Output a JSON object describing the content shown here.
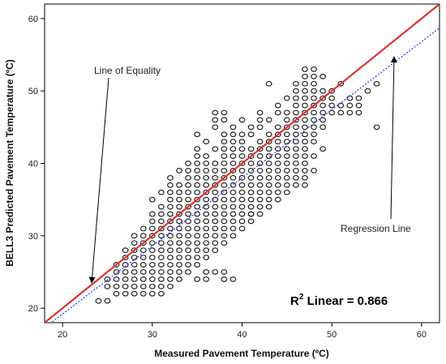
{
  "chart_data": {
    "type": "scatter",
    "xlabel": "Measured Pavement Temperature (ºC)",
    "ylabel": "BELL3 Predicted Pavement Temperature (ºC)",
    "xlim": [
      18,
      62
    ],
    "ylim": [
      18,
      62
    ],
    "xticks": [
      "20",
      "30",
      "40",
      "50",
      "60"
    ],
    "yticks": [
      "20",
      "30",
      "40",
      "50",
      "60"
    ],
    "grid": false,
    "annotations": {
      "equality_label": "Line of Equality",
      "regression_label": "Regression Line",
      "r2_prefix": "R",
      "r2_sup": "2",
      "r2_text": " Linear = 0.866"
    },
    "lines": [
      {
        "name": "Line of Equality",
        "slope": 1,
        "intercept": 0,
        "color": "#e03030",
        "style": "solid"
      },
      {
        "name": "Regression Line",
        "slope": 0.94,
        "intercept": 0.4,
        "color": "#3a3af0",
        "style": "dotted"
      }
    ],
    "marker_color": "#222222",
    "point_rows": [
      {
        "y": 21,
        "x": [
          24,
          25
        ]
      },
      {
        "y": 22,
        "x": [
          26,
          27,
          28,
          29,
          30,
          31
        ]
      },
      {
        "y": 23,
        "x": [
          25,
          26,
          27,
          28,
          29,
          30,
          31,
          32
        ]
      },
      {
        "y": 24,
        "x": [
          25,
          26,
          27,
          28,
          29,
          30,
          31,
          32,
          33,
          35,
          36,
          38
        ]
      },
      {
        "y": 25,
        "x": [
          26,
          27,
          28,
          29,
          30,
          31,
          32,
          33,
          34,
          37,
          38
        ]
      },
      {
        "y": 26,
        "x": [
          26,
          27,
          28,
          29,
          30,
          31,
          32,
          33,
          34,
          35
        ]
      },
      {
        "y": 27,
        "x": [
          27,
          28,
          29,
          30,
          31,
          32,
          33,
          34,
          35,
          36
        ]
      },
      {
        "y": 28,
        "x": [
          27,
          28,
          29,
          30,
          31,
          32,
          33,
          34,
          35,
          36,
          37
        ]
      },
      {
        "y": 29,
        "x": [
          28,
          29,
          30,
          31,
          32,
          33,
          34,
          35,
          36,
          37,
          38
        ]
      },
      {
        "y": 30,
        "x": [
          28,
          29,
          30,
          31,
          32,
          33,
          34,
          35,
          36,
          37,
          38,
          39
        ]
      },
      {
        "y": 31,
        "x": [
          29,
          30,
          31,
          32,
          33,
          34,
          35,
          36,
          37,
          38,
          39,
          40
        ]
      },
      {
        "y": 32,
        "x": [
          30,
          31,
          32,
          33,
          34,
          35,
          36,
          37,
          38,
          39,
          40,
          41
        ]
      },
      {
        "y": 33,
        "x": [
          30,
          31,
          32,
          33,
          34,
          35,
          36,
          37,
          38,
          39,
          40,
          41,
          42
        ]
      },
      {
        "y": 34,
        "x": [
          31,
          32,
          33,
          34,
          35,
          36,
          37,
          38,
          39,
          40,
          41,
          42,
          43
        ]
      },
      {
        "y": 35,
        "x": [
          30,
          32,
          33,
          34,
          35,
          36,
          37,
          38,
          39,
          40,
          41,
          42,
          43,
          44
        ]
      },
      {
        "y": 36,
        "x": [
          31,
          32,
          33,
          34,
          35,
          36,
          37,
          38,
          39,
          40,
          41,
          42,
          43,
          44,
          45
        ]
      },
      {
        "y": 37,
        "x": [
          32,
          33,
          34,
          35,
          36,
          37,
          38,
          39,
          40,
          41,
          42,
          43,
          44,
          45,
          46,
          47
        ]
      },
      {
        "y": 38,
        "x": [
          32,
          34,
          35,
          36,
          37,
          38,
          39,
          40,
          41,
          42,
          43,
          44,
          45,
          46,
          47
        ]
      },
      {
        "y": 39,
        "x": [
          33,
          34,
          35,
          36,
          37,
          38,
          39,
          40,
          41,
          42,
          43,
          44,
          45,
          46,
          47,
          48
        ]
      },
      {
        "y": 40,
        "x": [
          34,
          35,
          36,
          37,
          38,
          39,
          40,
          41,
          42,
          43,
          44,
          45,
          46,
          47
        ]
      },
      {
        "y": 41,
        "x": [
          35,
          36,
          38,
          39,
          40,
          41,
          42,
          43,
          44,
          45,
          46,
          47,
          48
        ]
      },
      {
        "y": 42,
        "x": [
          35,
          37,
          38,
          39,
          40,
          41,
          42,
          43,
          44,
          45,
          46,
          47,
          49
        ]
      },
      {
        "y": 43,
        "x": [
          36,
          38,
          39,
          40,
          42,
          43,
          44,
          45,
          46,
          47,
          48
        ]
      },
      {
        "y": 44,
        "x": [
          35,
          38,
          39,
          40,
          41,
          43,
          44,
          45,
          46,
          47,
          48
        ]
      },
      {
        "y": 45,
        "x": [
          37,
          39,
          41,
          42,
          44,
          45,
          46,
          47,
          48,
          49
        ]
      },
      {
        "y": 46,
        "x": [
          37,
          38,
          40,
          42,
          43,
          45,
          46,
          47,
          48,
          49
        ]
      },
      {
        "y": 47,
        "x": [
          37,
          38,
          42,
          44,
          45,
          46,
          47,
          48,
          49,
          50,
          51,
          52,
          53
        ]
      },
      {
        "y": 48,
        "x": [
          44,
          46,
          47,
          48,
          49,
          50,
          51,
          52,
          53
        ]
      },
      {
        "y": 49,
        "x": [
          45,
          46,
          47,
          48,
          49,
          50,
          52,
          53
        ]
      },
      {
        "y": 50,
        "x": [
          46,
          47,
          48,
          49,
          50,
          54
        ]
      },
      {
        "y": 51,
        "x": [
          43,
          46,
          47,
          48,
          51,
          55
        ]
      },
      {
        "y": 52,
        "x": [
          47,
          48,
          49
        ]
      },
      {
        "y": 53,
        "x": [
          47,
          48
        ]
      },
      {
        "y": 45,
        "x": [
          55
        ]
      },
      {
        "y": 33,
        "x": [
          41
        ]
      },
      {
        "y": 24,
        "x": [
          39
        ]
      },
      {
        "y": 25,
        "x": [
          36
        ]
      }
    ]
  }
}
